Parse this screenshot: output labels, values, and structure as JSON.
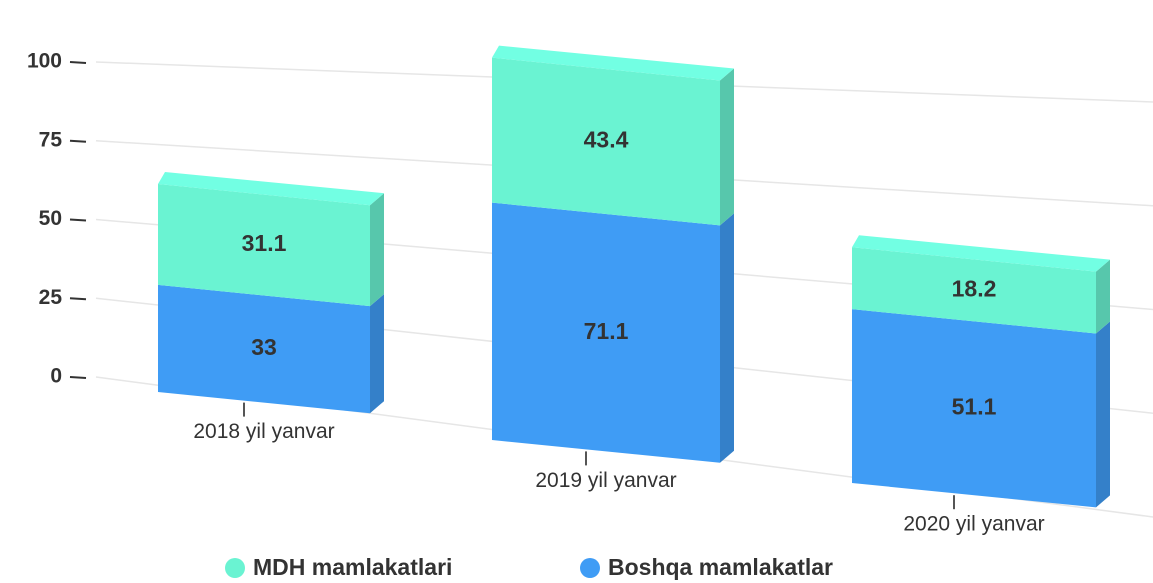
{
  "chart_data": {
    "type": "bar3d_stacked",
    "categories": [
      "2018 yil yanvar",
      "2019 yil yanvar",
      "2020 yil yanvar"
    ],
    "series": [
      {
        "name": "MDH mamlakatlari",
        "color": "#6af3d2",
        "values": [
          31.1,
          43.4,
          18.2
        ]
      },
      {
        "name": "Boshqa mamlakatlar",
        "color": "#3f9cf5",
        "values": [
          33,
          71.1,
          51.1
        ]
      }
    ],
    "stack_order": [
      "Boshqa mamlakatlar",
      "MDH mamlakatlari"
    ],
    "ylim": [
      0,
      100
    ],
    "yticks": [
      0,
      25,
      50,
      75,
      100
    ],
    "grid": true,
    "legend": "bottom"
  }
}
